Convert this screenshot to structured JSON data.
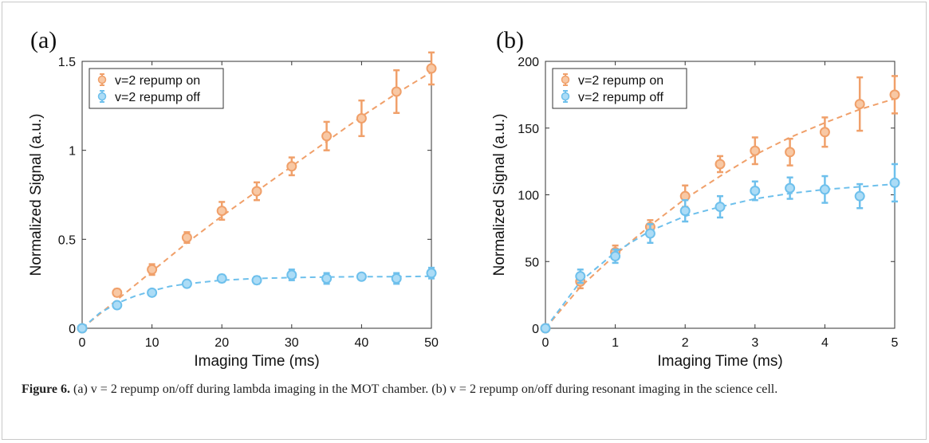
{
  "figure": {
    "caption_label": "Figure 6.",
    "caption_text": "(a) v = 2 repump on/off during lambda imaging in the MOT chamber. (b) v = 2 repump on/off during resonant imaging in the science cell."
  },
  "colors": {
    "on": "#f0a06a",
    "off": "#6ec0ec",
    "on_fill": "#f8c8a4",
    "off_fill": "#acdcf6"
  },
  "chart_data": [
    {
      "type": "scatter",
      "panel_label": "(a)",
      "xlabel": "Imaging Time (ms)",
      "ylabel": "Normalized Signal (a.u.)",
      "xlim": [
        0,
        50
      ],
      "ylim": [
        0,
        1.5
      ],
      "xticks": [
        0,
        10,
        20,
        30,
        40,
        50
      ],
      "yticks": [
        0,
        0.5,
        1,
        1.5
      ],
      "ytick_labels": [
        "0",
        "0.5",
        "1",
        "1.5"
      ],
      "legend_position": "top-left",
      "grid": false,
      "series": [
        {
          "name": "v=2 repump on",
          "color": "#f0a06a",
          "x": [
            0,
            5,
            10,
            15,
            20,
            25,
            30,
            35,
            40,
            45,
            50
          ],
          "y": [
            0,
            0.2,
            0.33,
            0.51,
            0.66,
            0.77,
            0.91,
            1.08,
            1.18,
            1.33,
            1.46
          ],
          "err": [
            0.01,
            0.02,
            0.03,
            0.03,
            0.05,
            0.05,
            0.05,
            0.08,
            0.1,
            0.12,
            0.09
          ],
          "fit_x": [
            0,
            5,
            10,
            15,
            20,
            25,
            30,
            35,
            40,
            45,
            50
          ],
          "fit_y": [
            0,
            0.16,
            0.32,
            0.48,
            0.63,
            0.77,
            0.91,
            1.05,
            1.19,
            1.32,
            1.44
          ]
        },
        {
          "name": "v=2 repump off",
          "color": "#6ec0ec",
          "x": [
            0,
            5,
            10,
            15,
            20,
            25,
            30,
            35,
            40,
            45,
            50
          ],
          "y": [
            0,
            0.13,
            0.2,
            0.25,
            0.28,
            0.27,
            0.3,
            0.28,
            0.29,
            0.28,
            0.31
          ],
          "err": [
            0.01,
            0.01,
            0.01,
            0.01,
            0.02,
            0.02,
            0.03,
            0.03,
            0.01,
            0.03,
            0.03
          ],
          "fit_x": [
            0,
            2.5,
            5,
            7.5,
            10,
            12.5,
            15,
            17.5,
            20,
            25,
            30,
            35,
            40,
            45,
            50
          ],
          "fit_y": [
            0,
            0.085,
            0.14,
            0.18,
            0.21,
            0.235,
            0.25,
            0.26,
            0.27,
            0.28,
            0.285,
            0.288,
            0.29,
            0.29,
            0.292
          ]
        }
      ]
    },
    {
      "type": "scatter",
      "panel_label": "(b)",
      "xlabel": "Imaging Time (ms)",
      "ylabel": "Normalized Signal (a.u.)",
      "xlim": [
        0,
        5
      ],
      "ylim": [
        0,
        200
      ],
      "xticks": [
        0,
        1,
        2,
        3,
        4,
        5
      ],
      "yticks": [
        0,
        50,
        100,
        150,
        200
      ],
      "ytick_labels": [
        "0",
        "50",
        "100",
        "150",
        "200"
      ],
      "legend_position": "top-left",
      "grid": false,
      "series": [
        {
          "name": "v=2 repump on",
          "color": "#f0a06a",
          "x": [
            0,
            0.5,
            1,
            1.5,
            2,
            2.5,
            3,
            3.5,
            4,
            4.5,
            5
          ],
          "y": [
            0,
            35,
            57,
            76,
            99,
            123,
            133,
            132,
            147,
            168,
            175
          ],
          "err": [
            1,
            5,
            5,
            5,
            8,
            6,
            10,
            10,
            11,
            20,
            14
          ],
          "fit_x": [
            0,
            0.5,
            1,
            1.5,
            2,
            2.5,
            3,
            3.5,
            4,
            4.5,
            5
          ],
          "fit_y": [
            0,
            31,
            55,
            77,
            97,
            114,
            130,
            143,
            154,
            164,
            172
          ]
        },
        {
          "name": "v=2 repump off",
          "color": "#6ec0ec",
          "x": [
            0,
            0.5,
            1,
            1.5,
            2,
            2.5,
            3,
            3.5,
            4,
            4.5,
            5
          ],
          "y": [
            0,
            39,
            54,
            71,
            88,
            91,
            103,
            105,
            104,
            99,
            109
          ],
          "err": [
            1,
            5,
            5,
            7,
            8,
            8,
            7,
            8,
            10,
            9,
            14
          ],
          "fit_x": [
            0,
            0.5,
            1,
            1.5,
            2,
            2.5,
            3,
            3.5,
            4,
            4.5,
            5
          ],
          "fit_y": [
            0,
            35,
            57,
            73,
            84,
            91,
            97,
            101,
            104,
            106,
            108
          ]
        }
      ]
    }
  ]
}
